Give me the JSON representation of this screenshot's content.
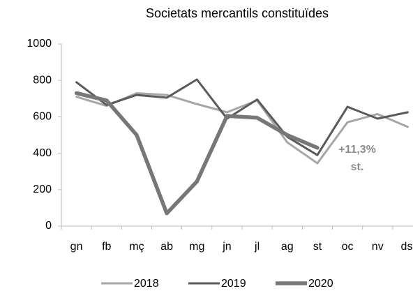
{
  "chart_data": {
    "type": "line",
    "title": "Societats mercantils constituïdes",
    "categories": [
      "gn",
      "fb",
      "mç",
      "ab",
      "mg",
      "jn",
      "jl",
      "ag",
      "st",
      "oc",
      "nv",
      "ds"
    ],
    "series": [
      {
        "name": "2018",
        "color": "#a6a6a6",
        "width": 3,
        "values": [
          710,
          660,
          730,
          720,
          670,
          625,
          690,
          460,
          345,
          570,
          615,
          545
        ]
      },
      {
        "name": "2019",
        "color": "#5a5a5a",
        "width": 3,
        "values": [
          790,
          665,
          720,
          705,
          805,
          590,
          695,
          490,
          390,
          655,
          590,
          625
        ]
      },
      {
        "name": "2020",
        "color": "#777777",
        "width": 5.5,
        "values": [
          730,
          690,
          500,
          70,
          245,
          605,
          595,
          500,
          430,
          null,
          null,
          null
        ]
      }
    ],
    "annotations": [
      "+11,3%",
      "st."
    ],
    "ylim": [
      0,
      1000
    ],
    "yticks": [
      0,
      200,
      400,
      600,
      800,
      1000
    ],
    "grid": false,
    "legend": "bottom"
  }
}
